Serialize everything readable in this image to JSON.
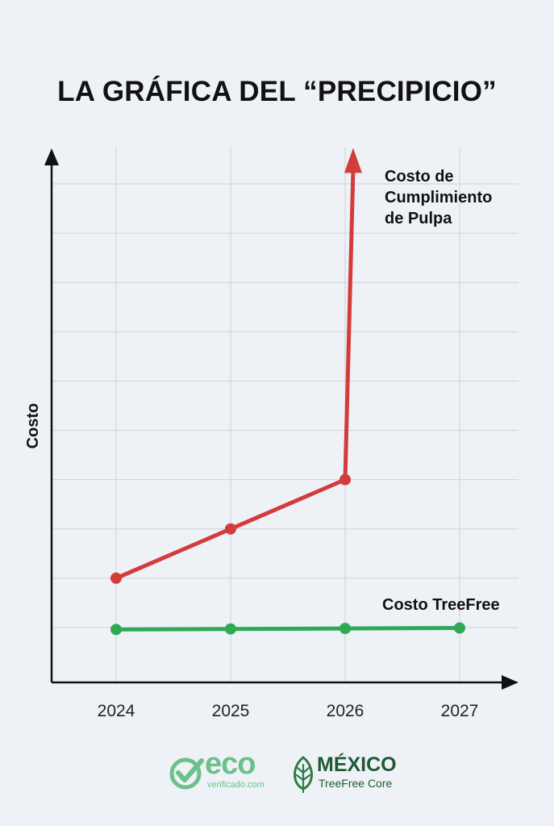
{
  "title": "LA GRÁFICA DEL “PRECIPICIO”",
  "chart_data": {
    "type": "line",
    "title": "LA GRÁFICA DEL “PRECIPICIO”",
    "xlabel": "",
    "ylabel": "Costo",
    "x_ticks": [
      "2024",
      "2025",
      "2026",
      "2027"
    ],
    "xlim": [
      2023.43,
      2027.5
    ],
    "ylim": [
      -0.1,
      10.8
    ],
    "y_ticks_labeled": false,
    "grid": true,
    "legend": "none (direct labels on series, right side)",
    "series": [
      {
        "name": "Costo de Cumplimiento de Pulpa",
        "label_lines": [
          "Costo de",
          "Cumplimiento",
          "de Pulpa"
        ],
        "color": "#d23c3c",
        "points": [
          {
            "x": 2024,
            "y": 2
          },
          {
            "x": 2025,
            "y": 3
          },
          {
            "x": 2026,
            "y": 4
          }
        ],
        "spike_to": {
          "x": 2026.07,
          "y": 10.6
        },
        "spike_arrow": true
      },
      {
        "name": "Costo TreeFree",
        "color": "#2fa956",
        "points": [
          {
            "x": 2024,
            "y": 0.96
          },
          {
            "x": 2025,
            "y": 0.97
          },
          {
            "x": 2026,
            "y": 0.98
          },
          {
            "x": 2027,
            "y": 0.99
          }
        ]
      }
    ]
  },
  "logos": {
    "eco": {
      "word": "eco",
      "sub": "verificado.com",
      "color": "#6cc08a"
    },
    "mexico": {
      "word": "MÉXICO",
      "sub": "TreeFree Core",
      "color": "#1f5a34"
    }
  }
}
